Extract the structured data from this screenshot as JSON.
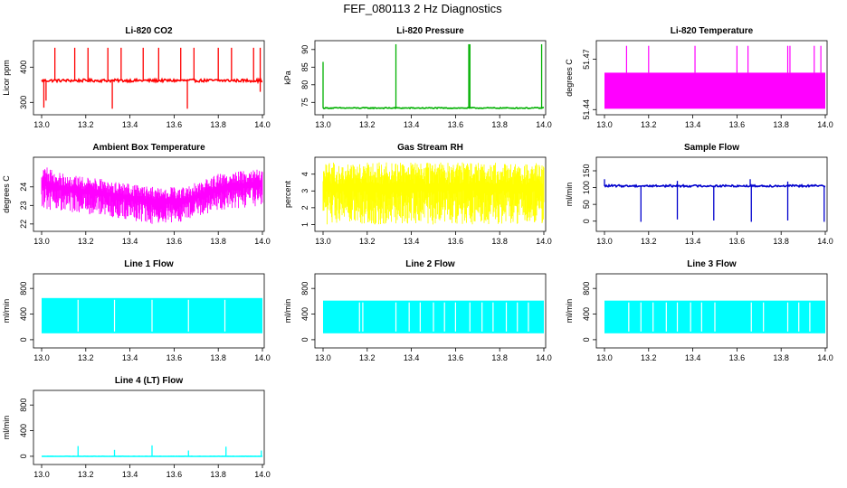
{
  "figure_title": "FEF_080113  2 Hz Diagnostics",
  "chart_data": [
    {
      "type": "line",
      "title": "Li-820 CO2",
      "ylabel": "Licor ppm",
      "color": "#ff0000",
      "xlim": [
        13.0,
        14.0
      ],
      "ylim": [
        270,
        470
      ],
      "xticks": [
        "13.0",
        "13.2",
        "13.4",
        "13.6",
        "13.8",
        "14.0"
      ],
      "yticks": [
        300,
        400
      ],
      "style": "spiky",
      "baseline": 362,
      "noise": 4,
      "spikes": [
        [
          13.06,
          455
        ],
        [
          13.15,
          455
        ],
        [
          13.21,
          455
        ],
        [
          13.3,
          455
        ],
        [
          13.36,
          455
        ],
        [
          13.46,
          455
        ],
        [
          13.53,
          455
        ],
        [
          13.63,
          455
        ],
        [
          13.69,
          455
        ],
        [
          13.8,
          455
        ],
        [
          13.86,
          455
        ],
        [
          13.96,
          455
        ],
        [
          13.99,
          455
        ]
      ],
      "dips": [
        [
          13.01,
          285
        ],
        [
          13.02,
          305
        ],
        [
          13.32,
          282
        ],
        [
          13.66,
          282
        ],
        [
          13.99,
          330
        ]
      ]
    },
    {
      "type": "line",
      "title": "Li-820 Pressure",
      "ylabel": "kPa",
      "color": "#00b000",
      "xlim": [
        13.0,
        14.0
      ],
      "ylim": [
        72,
        92
      ],
      "xticks": [
        "13.0",
        "13.2",
        "13.4",
        "13.6",
        "13.8",
        "14.0"
      ],
      "yticks": [
        75,
        80,
        85,
        90
      ],
      "style": "spiky",
      "baseline": 73.4,
      "noise": 0.15,
      "spikes": [
        [
          13.0,
          86.5
        ],
        [
          13.33,
          91.5
        ],
        [
          13.66,
          91.5
        ],
        [
          13.665,
          91.5
        ],
        [
          13.99,
          91.5
        ]
      ],
      "dips": []
    },
    {
      "type": "area",
      "title": "Li-820 Temperature",
      "ylabel": "degrees C",
      "color": "#ff00ff",
      "xlim": [
        13.0,
        14.0
      ],
      "ylim": [
        51.438,
        51.48
      ],
      "xticks": [
        "13.0",
        "13.2",
        "13.4",
        "13.6",
        "13.8",
        "14.0"
      ],
      "yticks": [
        51.44,
        51.47
      ],
      "style": "block",
      "band_low": 51.4405,
      "band_high": 51.462,
      "spikes": [
        [
          13.1,
          51.478
        ],
        [
          13.2,
          51.478
        ],
        [
          13.41,
          51.478
        ],
        [
          13.6,
          51.478
        ],
        [
          13.65,
          51.478
        ],
        [
          13.83,
          51.478
        ],
        [
          13.84,
          51.478
        ],
        [
          13.95,
          51.478
        ],
        [
          13.98,
          51.478
        ]
      ]
    },
    {
      "type": "line",
      "title": "Ambient Box Temperature",
      "ylabel": "degrees C",
      "color": "#ff00ff",
      "xlim": [
        13.0,
        14.0
      ],
      "ylim": [
        21.7,
        25.5
      ],
      "xticks": [
        "13.0",
        "13.2",
        "13.4",
        "13.6",
        "13.8",
        "14.0"
      ],
      "yticks": [
        22.0,
        23.0,
        24.0
      ],
      "style": "noise",
      "upper": [
        [
          13.0,
          25.2
        ],
        [
          13.1,
          24.7
        ],
        [
          13.3,
          24.4
        ],
        [
          13.5,
          24.0
        ],
        [
          13.65,
          24.0
        ],
        [
          13.8,
          24.7
        ],
        [
          14.0,
          25.0
        ]
      ],
      "lower": [
        [
          13.0,
          22.8
        ],
        [
          13.1,
          22.7
        ],
        [
          13.3,
          22.4
        ],
        [
          13.5,
          22.0
        ],
        [
          13.65,
          22.1
        ],
        [
          13.8,
          22.7
        ],
        [
          14.0,
          23.0
        ]
      ]
    },
    {
      "type": "line",
      "title": "Gas Stream RH",
      "ylabel": "percent",
      "color": "#ffff00",
      "xlim": [
        13.0,
        14.0
      ],
      "ylim": [
        0.7,
        4.9
      ],
      "xticks": [
        "13.0",
        "13.2",
        "13.4",
        "13.6",
        "13.8",
        "14.0"
      ],
      "yticks": [
        1,
        2,
        3,
        4
      ],
      "style": "noise",
      "upper": [
        [
          13.0,
          4.7
        ],
        [
          14.0,
          4.7
        ]
      ],
      "lower": [
        [
          13.0,
          1.0
        ],
        [
          14.0,
          1.0
        ]
      ]
    },
    {
      "type": "line",
      "title": "Sample Flow",
      "ylabel": "ml/min",
      "color": "#0000cd",
      "xlim": [
        13.0,
        14.0
      ],
      "ylim": [
        -25,
        185
      ],
      "xticks": [
        "13.0",
        "13.2",
        "13.4",
        "13.6",
        "13.8",
        "14.0"
      ],
      "yticks": [
        0,
        50,
        100,
        150
      ],
      "style": "spiky",
      "baseline": 105,
      "noise": 3,
      "spikes": [
        [
          13.0,
          125
        ],
        [
          13.33,
          120
        ],
        [
          13.66,
          125
        ],
        [
          13.83,
          118
        ]
      ],
      "dips": [
        [
          13.165,
          -2
        ],
        [
          13.33,
          5
        ],
        [
          13.495,
          2
        ],
        [
          13.665,
          -2
        ],
        [
          13.83,
          2
        ],
        [
          13.995,
          -2
        ]
      ]
    },
    {
      "type": "area",
      "title": "Line 1 Flow",
      "ylabel": "ml/min",
      "color": "#00ffff",
      "xlim": [
        13.0,
        14.0
      ],
      "ylim": [
        -100,
        1000
      ],
      "xticks": [
        "13.0",
        "13.2",
        "13.4",
        "13.6",
        "13.8",
        "14.0"
      ],
      "yticks": [
        0,
        400,
        800
      ],
      "style": "band",
      "band_low": 100,
      "band_high": 650,
      "gaps": [
        13.165,
        13.33,
        13.5,
        13.665,
        13.83
      ]
    },
    {
      "type": "area",
      "title": "Line 2 Flow",
      "ylabel": "ml/min",
      "color": "#00ffff",
      "xlim": [
        13.0,
        14.0
      ],
      "ylim": [
        -100,
        1000
      ],
      "xticks": [
        "13.0",
        "13.2",
        "13.4",
        "13.6",
        "13.8",
        "14.0"
      ],
      "yticks": [
        0,
        400,
        800
      ],
      "style": "band",
      "band_low": 100,
      "band_high": 610,
      "gaps": [
        13.165,
        13.18,
        13.33,
        13.39,
        13.44,
        13.5,
        13.55,
        13.6,
        13.665,
        13.72,
        13.77,
        13.83,
        13.88,
        13.93
      ]
    },
    {
      "type": "area",
      "title": "Line 3 Flow",
      "ylabel": "ml/min",
      "color": "#00ffff",
      "xlim": [
        13.0,
        14.0
      ],
      "ylim": [
        -100,
        1000
      ],
      "xticks": [
        "13.0",
        "13.2",
        "13.4",
        "13.6",
        "13.8",
        "14.0"
      ],
      "yticks": [
        0,
        400,
        800
      ],
      "style": "band",
      "band_low": 100,
      "band_high": 610,
      "gaps": [
        13.11,
        13.165,
        13.22,
        13.28,
        13.33,
        13.39,
        13.44,
        13.5,
        13.665,
        13.72,
        13.83,
        13.88,
        13.93
      ]
    },
    {
      "type": "line",
      "title": "Line 4 (LT) Flow",
      "ylabel": "ml/min",
      "color": "#00ffff",
      "xlim": [
        13.0,
        14.0
      ],
      "ylim": [
        -100,
        1000
      ],
      "xticks": [
        "13.0",
        "13.2",
        "13.4",
        "13.6",
        "13.8",
        "14.0"
      ],
      "yticks": [
        0,
        400,
        800
      ],
      "style": "spiky",
      "baseline": 0,
      "noise": 2,
      "spikes": [
        [
          13.165,
          160
        ],
        [
          13.33,
          100
        ],
        [
          13.5,
          170
        ],
        [
          13.665,
          90
        ],
        [
          13.835,
          150
        ],
        [
          13.995,
          90
        ]
      ],
      "dips": []
    }
  ]
}
